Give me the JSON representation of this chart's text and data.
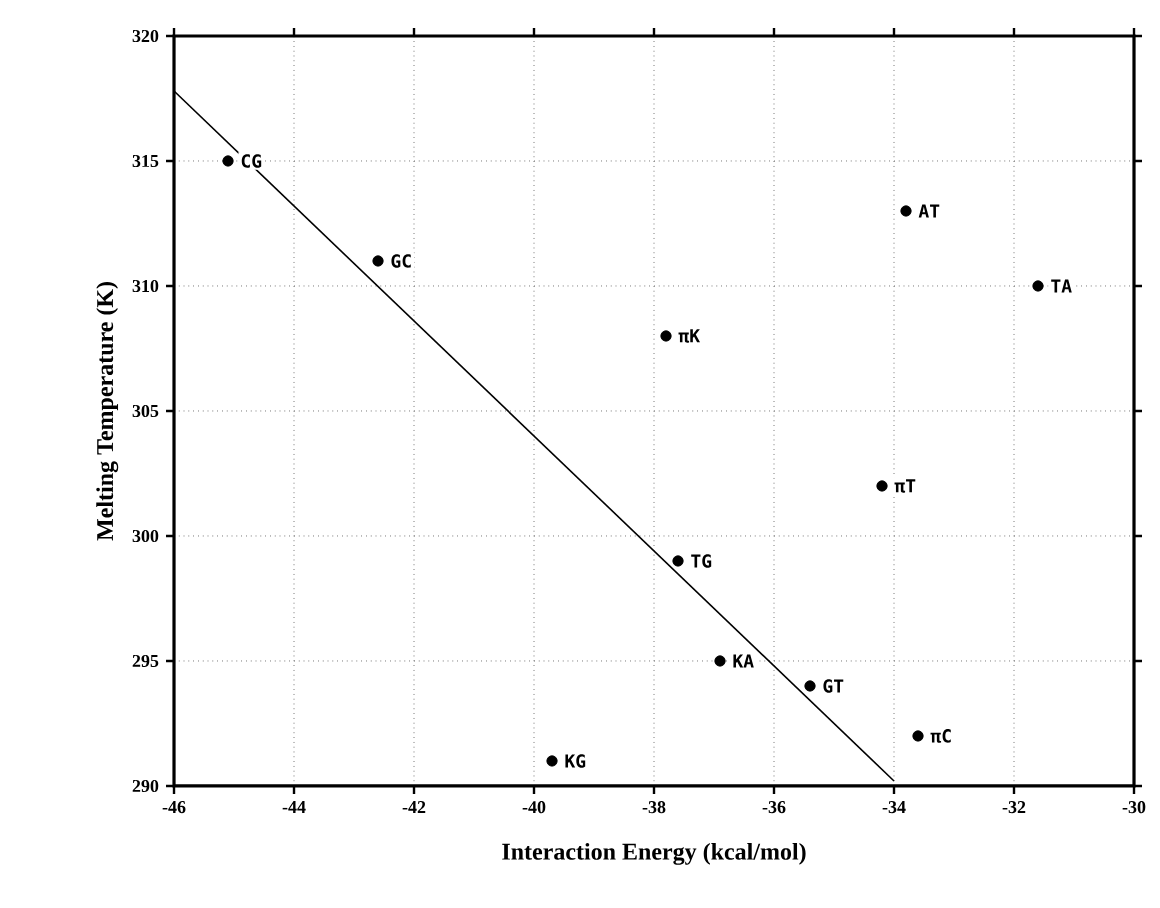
{
  "chart_data": {
    "type": "scatter",
    "xlabel": "Interaction   Energy   (kcal/mol)",
    "ylabel": "Melting Temperature (K)",
    "xlim": [
      -46,
      -30
    ],
    "ylim": [
      290,
      320
    ],
    "xticks": [
      -46,
      -44,
      -42,
      -40,
      -38,
      -36,
      -34,
      -32,
      -30
    ],
    "yticks": [
      290,
      295,
      300,
      305,
      310,
      315,
      320
    ],
    "grid": true,
    "series": [
      {
        "color": "#000000",
        "marker": "circle",
        "x": [
          -45.1,
          -42.6,
          -33.8,
          -31.6,
          -37.8,
          -34.2,
          -37.6,
          -36.9,
          -35.4,
          -33.6,
          -39.7
        ],
        "values": [
          315,
          311,
          313,
          310,
          308,
          302,
          299,
          295,
          294,
          292,
          291
        ]
      },
      {
        "type": "line",
        "color": "#000000",
        "line_style": "solid",
        "marker": "none",
        "x": [
          -46,
          -34
        ],
        "values": [
          317.8,
          290.2
        ]
      }
    ],
    "annotations": [
      {
        "text": "CG",
        "x": -45.1,
        "y": 315
      },
      {
        "text": "GC",
        "x": -42.6,
        "y": 311
      },
      {
        "text": "AT",
        "x": -33.8,
        "y": 313
      },
      {
        "text": "TA",
        "x": -31.6,
        "y": 310
      },
      {
        "text": "πK",
        "x": -37.8,
        "y": 308
      },
      {
        "text": "πT",
        "x": -34.2,
        "y": 302
      },
      {
        "text": "TG",
        "x": -37.6,
        "y": 299
      },
      {
        "text": "KA",
        "x": -36.9,
        "y": 295
      },
      {
        "text": "GT",
        "x": -35.4,
        "y": 294
      },
      {
        "text": "πC",
        "x": -33.6,
        "y": 292
      },
      {
        "text": "KG",
        "x": -39.7,
        "y": 291
      }
    ]
  }
}
